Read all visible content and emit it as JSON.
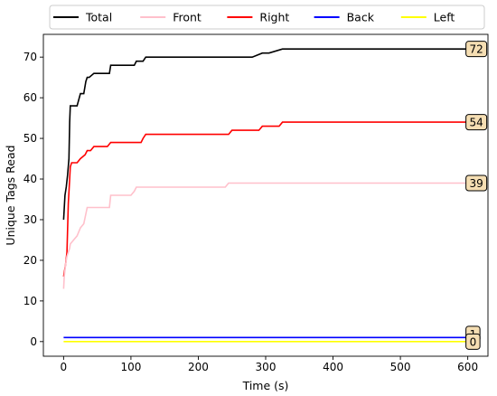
{
  "chart_data": {
    "type": "line",
    "title": "",
    "xlabel": "Time (s)",
    "ylabel": "Unique Tags Read",
    "xlim": [
      -30,
      630
    ],
    "ylim": [
      -3.6,
      75.6
    ],
    "xticks": [
      0,
      100,
      200,
      300,
      400,
      500,
      600
    ],
    "yticks": [
      0,
      10,
      20,
      30,
      40,
      50,
      60,
      70
    ],
    "grid": false,
    "legend": {
      "placement": "top, above plot",
      "columns": 5
    },
    "series": [
      {
        "name": "Total",
        "color": "#000000",
        "end_label": "72",
        "x": [
          0,
          2,
          4,
          6,
          8,
          9,
          10,
          12,
          20,
          25,
          30,
          33,
          35,
          38,
          45,
          68,
          70,
          80,
          105,
          108,
          118,
          122,
          130,
          280,
          295,
          305,
          325,
          330,
          600
        ],
        "y": [
          30,
          36,
          38,
          41,
          45,
          54,
          58,
          58,
          58,
          61,
          61,
          64,
          65,
          65,
          66,
          66,
          68,
          68,
          68,
          69,
          69,
          70,
          70,
          70,
          71,
          71,
          72,
          72,
          72
        ]
      },
      {
        "name": "Front",
        "color": "#ffc0cb",
        "end_label": "39",
        "x": [
          0,
          1,
          3,
          5,
          7,
          9,
          10,
          15,
          20,
          25,
          30,
          35,
          40,
          60,
          68,
          70,
          100,
          105,
          108,
          240,
          245,
          250,
          600
        ],
        "y": [
          13,
          16,
          19,
          21,
          22,
          23,
          24,
          25,
          26,
          28,
          29,
          33,
          33,
          33,
          33,
          36,
          36,
          37,
          38,
          38,
          39,
          39,
          39
        ]
      },
      {
        "name": "Right",
        "color": "#ff0000",
        "end_label": "54",
        "x": [
          0,
          3,
          5,
          7,
          9,
          10,
          12,
          20,
          25,
          32,
          35,
          40,
          45,
          65,
          70,
          80,
          115,
          118,
          122,
          245,
          250,
          290,
          295,
          320,
          325,
          330,
          600
        ],
        "y": [
          16,
          19,
          22,
          34,
          40,
          43,
          44,
          44,
          45,
          46,
          47,
          47,
          48,
          48,
          49,
          49,
          49,
          50,
          51,
          51,
          52,
          52,
          53,
          53,
          54,
          54,
          54
        ]
      },
      {
        "name": "Back",
        "color": "#0000ff",
        "end_label": "1",
        "x": [
          0,
          600
        ],
        "y": [
          1,
          1
        ]
      },
      {
        "name": "Left",
        "color": "#ffff00",
        "end_label": "0",
        "x": [
          0,
          600
        ],
        "y": [
          0,
          0
        ]
      }
    ]
  }
}
